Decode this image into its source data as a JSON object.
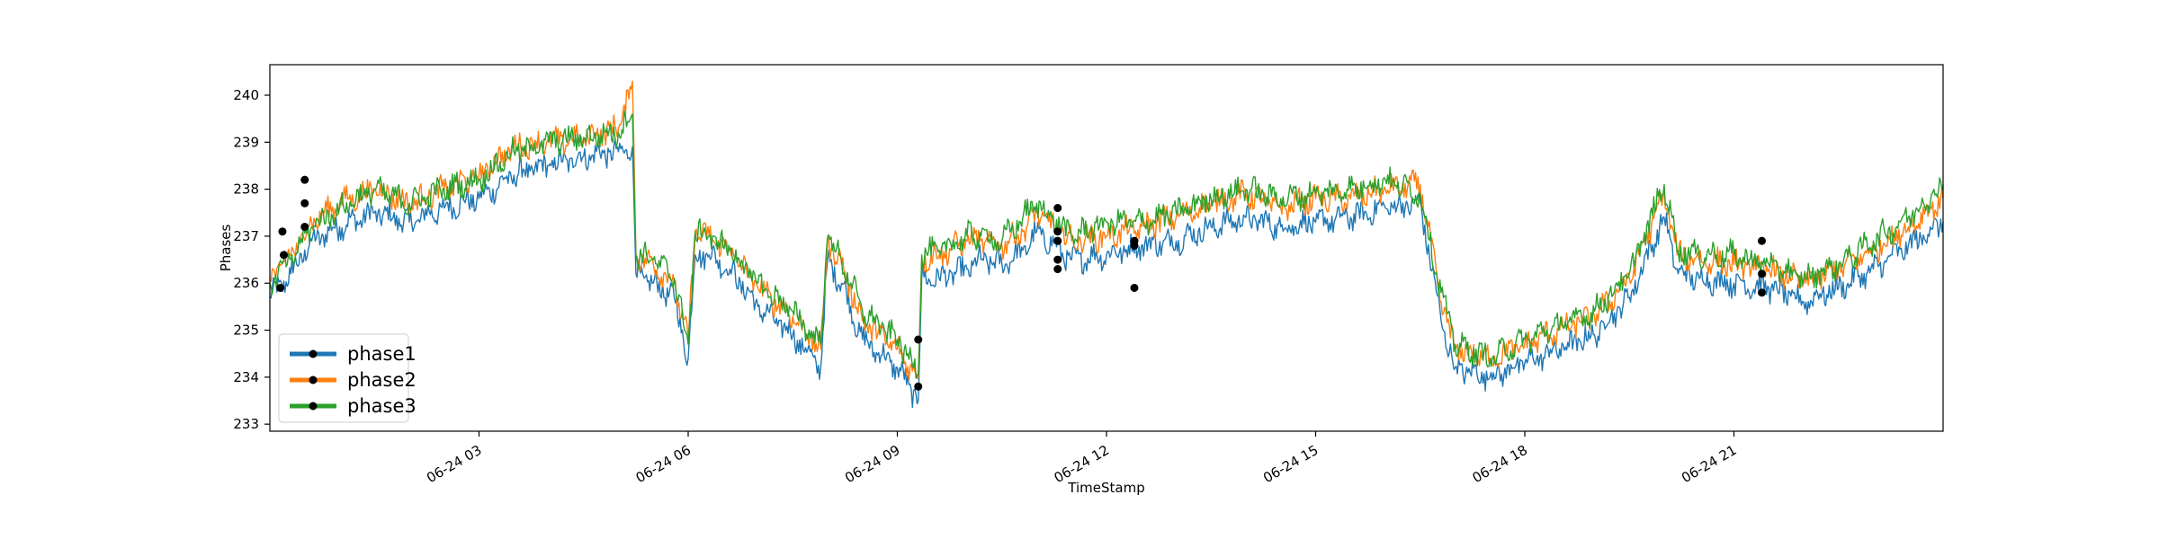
{
  "chart_data": {
    "type": "line",
    "title": "",
    "xlabel": "TimeStamp",
    "ylabel": "Phases",
    "grid": false,
    "legend_position": "lower-left",
    "ylim": [
      232.85,
      240.65
    ],
    "xlim_hours": [
      0,
      24
    ],
    "y_ticks": [
      233,
      234,
      235,
      236,
      237,
      238,
      239,
      240
    ],
    "x_ticks": [
      {
        "label": "06-24 03",
        "hour": 3
      },
      {
        "label": "06-24 06",
        "hour": 6
      },
      {
        "label": "06-24 09",
        "hour": 9
      },
      {
        "label": "06-24 12",
        "hour": 12
      },
      {
        "label": "06-24 15",
        "hour": 15
      },
      {
        "label": "06-24 18",
        "hour": 18
      },
      {
        "label": "06-24 21",
        "hour": 21
      }
    ],
    "series": [
      {
        "name": "phase1",
        "color": "#1f77b4",
        "points": [
          [
            0.0,
            235.7
          ],
          [
            0.3,
            236.2
          ],
          [
            0.6,
            236.9
          ],
          [
            1.0,
            237.2
          ],
          [
            1.5,
            237.5
          ],
          [
            2.0,
            237.3
          ],
          [
            2.5,
            237.6
          ],
          [
            3.0,
            237.8
          ],
          [
            3.5,
            238.3
          ],
          [
            4.0,
            238.5
          ],
          [
            4.5,
            238.7
          ],
          [
            5.0,
            238.8
          ],
          [
            5.2,
            238.9
          ],
          [
            5.25,
            236.2
          ],
          [
            5.5,
            236.0
          ],
          [
            5.8,
            235.7
          ],
          [
            6.0,
            234.4
          ],
          [
            6.1,
            236.6
          ],
          [
            6.3,
            236.6
          ],
          [
            6.6,
            236.3
          ],
          [
            7.0,
            235.5
          ],
          [
            7.5,
            234.9
          ],
          [
            7.9,
            234.2
          ],
          [
            8.0,
            236.5
          ],
          [
            8.2,
            236.0
          ],
          [
            8.5,
            234.8
          ],
          [
            9.0,
            234.2
          ],
          [
            9.3,
            233.5
          ],
          [
            9.35,
            236.1
          ],
          [
            9.6,
            236.1
          ],
          [
            10.0,
            236.3
          ],
          [
            10.2,
            236.5
          ],
          [
            10.5,
            236.4
          ],
          [
            10.8,
            236.7
          ],
          [
            11.0,
            237.1
          ],
          [
            11.5,
            236.5
          ],
          [
            12.0,
            236.6
          ],
          [
            12.5,
            236.8
          ],
          [
            13.0,
            236.9
          ],
          [
            13.5,
            237.2
          ],
          [
            14.0,
            237.4
          ],
          [
            14.5,
            237.2
          ],
          [
            15.0,
            237.3
          ],
          [
            15.5,
            237.4
          ],
          [
            16.0,
            237.6
          ],
          [
            16.5,
            237.7
          ],
          [
            16.8,
            235.2
          ],
          [
            17.0,
            234.2
          ],
          [
            17.5,
            234.0
          ],
          [
            18.0,
            234.3
          ],
          [
            18.5,
            234.6
          ],
          [
            19.0,
            234.9
          ],
          [
            19.5,
            235.7
          ],
          [
            20.0,
            237.4
          ],
          [
            20.2,
            236.2
          ],
          [
            20.5,
            236.1
          ],
          [
            21.0,
            236.0
          ],
          [
            21.5,
            235.9
          ],
          [
            22.0,
            235.6
          ],
          [
            22.5,
            235.9
          ],
          [
            23.0,
            236.3
          ],
          [
            23.5,
            236.8
          ],
          [
            24.0,
            237.3
          ]
        ]
      },
      {
        "name": "phase2",
        "color": "#ff7f0e",
        "points": [
          [
            0.0,
            236.1
          ],
          [
            0.3,
            236.6
          ],
          [
            0.6,
            237.3
          ],
          [
            1.0,
            237.7
          ],
          [
            1.5,
            238.0
          ],
          [
            2.0,
            237.7
          ],
          [
            2.5,
            238.0
          ],
          [
            3.0,
            238.3
          ],
          [
            3.5,
            238.9
          ],
          [
            4.0,
            239.0
          ],
          [
            4.5,
            239.1
          ],
          [
            5.0,
            239.3
          ],
          [
            5.2,
            240.3
          ],
          [
            5.25,
            236.6
          ],
          [
            5.5,
            236.4
          ],
          [
            5.8,
            236.0
          ],
          [
            6.0,
            234.8
          ],
          [
            6.1,
            237.1
          ],
          [
            6.3,
            237.0
          ],
          [
            6.6,
            236.7
          ],
          [
            7.0,
            235.9
          ],
          [
            7.5,
            235.3
          ],
          [
            7.9,
            234.6
          ],
          [
            8.0,
            236.9
          ],
          [
            8.2,
            236.4
          ],
          [
            8.5,
            235.2
          ],
          [
            9.0,
            234.6
          ],
          [
            9.3,
            234.0
          ],
          [
            9.35,
            236.5
          ],
          [
            9.6,
            236.6
          ],
          [
            10.0,
            236.9
          ],
          [
            10.2,
            236.9
          ],
          [
            10.5,
            236.8
          ],
          [
            10.8,
            237.1
          ],
          [
            11.0,
            237.5
          ],
          [
            11.5,
            236.9
          ],
          [
            12.0,
            237.0
          ],
          [
            12.5,
            237.2
          ],
          [
            13.0,
            237.4
          ],
          [
            13.5,
            237.7
          ],
          [
            14.0,
            237.9
          ],
          [
            14.5,
            237.6
          ],
          [
            15.0,
            237.8
          ],
          [
            15.5,
            237.8
          ],
          [
            16.0,
            238.0
          ],
          [
            16.5,
            238.1
          ],
          [
            16.8,
            235.6
          ],
          [
            17.0,
            234.6
          ],
          [
            17.5,
            234.4
          ],
          [
            18.0,
            234.7
          ],
          [
            18.5,
            235.0
          ],
          [
            19.0,
            235.3
          ],
          [
            19.5,
            236.1
          ],
          [
            20.0,
            237.9
          ],
          [
            20.2,
            236.6
          ],
          [
            20.5,
            236.5
          ],
          [
            21.0,
            236.4
          ],
          [
            21.5,
            236.3
          ],
          [
            22.0,
            236.0
          ],
          [
            22.5,
            236.3
          ],
          [
            23.0,
            236.7
          ],
          [
            23.5,
            237.2
          ],
          [
            24.0,
            237.8
          ]
        ]
      },
      {
        "name": "phase3",
        "color": "#2ca02c",
        "points": [
          [
            0.0,
            236.0
          ],
          [
            0.3,
            236.5
          ],
          [
            0.6,
            237.2
          ],
          [
            1.0,
            237.6
          ],
          [
            1.5,
            238.0
          ],
          [
            2.0,
            237.7
          ],
          [
            2.5,
            238.0
          ],
          [
            3.0,
            238.2
          ],
          [
            3.5,
            238.8
          ],
          [
            4.0,
            239.0
          ],
          [
            4.5,
            239.1
          ],
          [
            5.0,
            239.2
          ],
          [
            5.2,
            239.6
          ],
          [
            5.25,
            236.6
          ],
          [
            5.5,
            236.5
          ],
          [
            5.8,
            236.1
          ],
          [
            6.0,
            234.7
          ],
          [
            6.1,
            237.1
          ],
          [
            6.3,
            237.0
          ],
          [
            6.6,
            236.7
          ],
          [
            7.0,
            236.0
          ],
          [
            7.5,
            235.4
          ],
          [
            7.9,
            234.7
          ],
          [
            8.0,
            237.0
          ],
          [
            8.2,
            236.5
          ],
          [
            8.5,
            235.4
          ],
          [
            9.0,
            234.8
          ],
          [
            9.3,
            234.1
          ],
          [
            9.35,
            236.6
          ],
          [
            9.6,
            236.7
          ],
          [
            10.0,
            237.0
          ],
          [
            10.2,
            237.0
          ],
          [
            10.5,
            236.9
          ],
          [
            10.8,
            237.4
          ],
          [
            11.0,
            237.7
          ],
          [
            11.5,
            237.0
          ],
          [
            12.0,
            237.3
          ],
          [
            12.5,
            237.3
          ],
          [
            13.0,
            237.5
          ],
          [
            13.5,
            237.8
          ],
          [
            14.0,
            238.0
          ],
          [
            14.5,
            237.8
          ],
          [
            15.0,
            237.9
          ],
          [
            15.5,
            238.0
          ],
          [
            16.0,
            238.2
          ],
          [
            16.5,
            237.9
          ],
          [
            16.8,
            235.8
          ],
          [
            17.0,
            234.7
          ],
          [
            17.5,
            234.4
          ],
          [
            18.0,
            234.8
          ],
          [
            18.5,
            235.1
          ],
          [
            19.0,
            235.4
          ],
          [
            19.5,
            236.2
          ],
          [
            20.0,
            238.1
          ],
          [
            20.2,
            236.7
          ],
          [
            20.5,
            236.6
          ],
          [
            21.0,
            236.6
          ],
          [
            21.5,
            236.4
          ],
          [
            22.0,
            236.1
          ],
          [
            22.5,
            236.4
          ],
          [
            23.0,
            236.9
          ],
          [
            23.5,
            237.4
          ],
          [
            24.0,
            238.1
          ]
        ]
      }
    ],
    "markers": [
      {
        "hour": 0.15,
        "value": 235.9
      },
      {
        "hour": 0.18,
        "value": 237.1
      },
      {
        "hour": 0.2,
        "value": 236.6
      },
      {
        "hour": 0.5,
        "value": 237.7
      },
      {
        "hour": 0.5,
        "value": 238.2
      },
      {
        "hour": 0.5,
        "value": 237.2
      },
      {
        "hour": 9.3,
        "value": 234.8
      },
      {
        "hour": 9.3,
        "value": 233.8
      },
      {
        "hour": 11.3,
        "value": 237.6
      },
      {
        "hour": 11.3,
        "value": 237.1
      },
      {
        "hour": 11.3,
        "value": 236.9
      },
      {
        "hour": 11.3,
        "value": 236.5
      },
      {
        "hour": 11.3,
        "value": 236.3
      },
      {
        "hour": 12.4,
        "value": 236.9
      },
      {
        "hour": 12.4,
        "value": 236.8
      },
      {
        "hour": 12.4,
        "value": 235.9
      },
      {
        "hour": 21.4,
        "value": 236.9
      },
      {
        "hour": 21.4,
        "value": 236.2
      },
      {
        "hour": 21.4,
        "value": 235.8
      }
    ],
    "marker_color": "#000000"
  }
}
